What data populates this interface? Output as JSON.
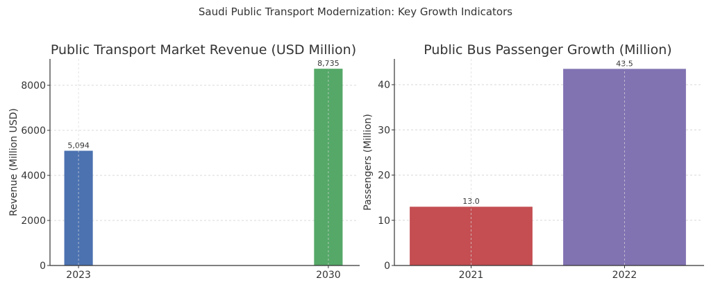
{
  "suptitle": "Saudi Public Transport Modernization: Key Growth Indicators",
  "chart_data": [
    {
      "type": "bar",
      "title": "Public Transport Market Revenue (USD Million)",
      "xlabel": "",
      "ylabel": "Revenue (Million USD)",
      "categories": [
        "2023",
        "2030"
      ],
      "x": [
        2023,
        2030
      ],
      "values": [
        5094,
        8735
      ],
      "data_labels": [
        "5,094",
        "8,735"
      ],
      "colors": [
        "#4c72b0",
        "#55a868"
      ],
      "xlim": [
        2022.2,
        2030.8
      ],
      "ylim": [
        0,
        9170
      ],
      "yticks": [
        0,
        2000,
        4000,
        6000,
        8000
      ],
      "grid": true
    },
    {
      "type": "bar",
      "title": "Public Bus Passenger Growth (Million)",
      "xlabel": "",
      "ylabel": "Passengers (Million)",
      "categories": [
        "2021",
        "2022"
      ],
      "values": [
        13.0,
        43.5
      ],
      "data_labels": [
        "13.0",
        "43.5"
      ],
      "colors": [
        "#c44e52",
        "#8172b2"
      ],
      "ylim": [
        0,
        45.7
      ],
      "yticks": [
        0,
        10,
        20,
        30,
        40
      ],
      "grid": true
    }
  ]
}
